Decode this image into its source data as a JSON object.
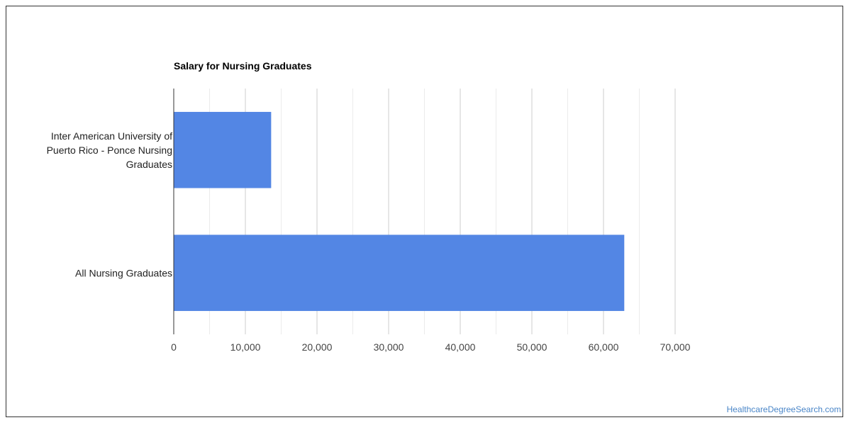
{
  "chart_data": {
    "type": "bar",
    "orientation": "horizontal",
    "title": "Salary for Nursing Graduates",
    "categories": [
      [
        "Inter American University of",
        "Puerto Rico - Ponce Nursing",
        "Graduates"
      ],
      [
        "All Nursing Graduates"
      ]
    ],
    "values": [
      13600,
      62900
    ],
    "xlim": [
      0,
      70000
    ],
    "xticks": [
      0,
      10000,
      20000,
      30000,
      40000,
      50000,
      60000,
      70000
    ],
    "xtick_labels": [
      "0",
      "10,000",
      "20,000",
      "30,000",
      "40,000",
      "50,000",
      "60,000",
      "70,000"
    ],
    "grid": true,
    "bar_color": "#5386e4",
    "legend": "none"
  },
  "source": "HealthcareDegreeSearch.com"
}
